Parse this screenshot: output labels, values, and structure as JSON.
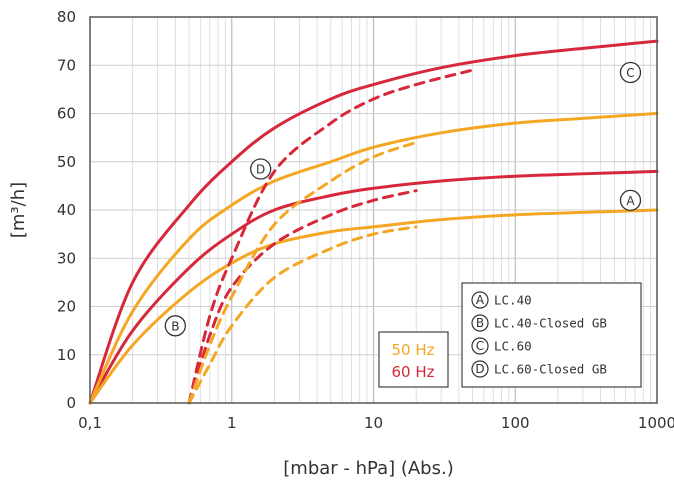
{
  "chart_data": {
    "type": "line",
    "x_scale": "log",
    "xlim": [
      0.1,
      1000
    ],
    "ylim": [
      0,
      80
    ],
    "xlabel": "[mbar - hPa] (Abs.)",
    "ylabel": "[m³/h]",
    "x_ticks": [
      "0,1",
      "1",
      "10",
      "100",
      "1000"
    ],
    "y_ticks": [
      "0",
      "10",
      "20",
      "30",
      "40",
      "50",
      "60",
      "70",
      "80"
    ],
    "grid": true,
    "colors": {
      "50 Hz": "#f5a623",
      "60 Hz": "#d6283a"
    },
    "frequency_legend": [
      {
        "label": "50 Hz",
        "color": "#f5a623"
      },
      {
        "label": "60 Hz",
        "color": "#d6283a"
      }
    ],
    "series_legend": [
      {
        "marker": "A",
        "label": "LC.40"
      },
      {
        "marker": "B",
        "label": "LC.40-Closed GB"
      },
      {
        "marker": "C",
        "label": "LC.60"
      },
      {
        "marker": "D",
        "label": "LC.60-Closed GB"
      }
    ],
    "series": [
      {
        "model": "A",
        "frequency": "60 Hz",
        "style": "solid",
        "color": "#d6283a",
        "x": [
          0.1,
          0.2,
          0.5,
          1,
          2,
          5,
          10,
          30,
          100,
          300,
          1000
        ],
        "y": [
          0,
          15,
          28,
          35,
          40,
          43,
          44.5,
          46,
          47,
          47.5,
          48
        ]
      },
      {
        "model": "A",
        "frequency": "50 Hz",
        "style": "solid",
        "color": "#f5a623",
        "x": [
          0.1,
          0.2,
          0.5,
          1,
          2,
          5,
          10,
          30,
          100,
          300,
          1000
        ],
        "y": [
          0,
          12,
          23,
          29,
          33,
          35.5,
          36.5,
          38,
          39,
          39.5,
          40
        ]
      },
      {
        "model": "C",
        "frequency": "60 Hz",
        "style": "solid",
        "color": "#d6283a",
        "x": [
          0.1,
          0.2,
          0.5,
          1,
          2,
          5,
          10,
          30,
          100,
          300,
          1000
        ],
        "y": [
          0,
          25,
          41,
          50,
          57,
          63,
          66,
          69.5,
          72,
          73.5,
          75
        ]
      },
      {
        "model": "C",
        "frequency": "50 Hz",
        "style": "solid",
        "color": "#f5a623",
        "x": [
          0.1,
          0.2,
          0.5,
          1,
          2,
          5,
          10,
          30,
          100,
          300,
          1000
        ],
        "y": [
          0,
          19,
          34,
          41,
          46,
          50,
          53,
          56,
          58,
          59,
          60
        ]
      },
      {
        "model": "B",
        "frequency": "60 Hz",
        "style": "dashed",
        "color": "#d6283a",
        "x": [
          0.5,
          0.7,
          1,
          2,
          5,
          10,
          20
        ],
        "y": [
          0,
          14,
          24,
          33,
          39,
          42,
          44
        ]
      },
      {
        "model": "B",
        "frequency": "50 Hz",
        "style": "dashed",
        "color": "#f5a623",
        "x": [
          0.5,
          0.7,
          1,
          2,
          5,
          10,
          20
        ],
        "y": [
          0,
          8,
          16,
          26,
          32,
          35,
          36.5
        ]
      },
      {
        "model": "D",
        "frequency": "60 Hz",
        "style": "dashed",
        "color": "#d6283a",
        "x": [
          0.5,
          0.7,
          1,
          2,
          5,
          10,
          20,
          50
        ],
        "y": [
          0,
          18,
          30,
          48,
          58,
          63,
          66,
          69
        ]
      },
      {
        "model": "D",
        "frequency": "50 Hz",
        "style": "dashed",
        "color": "#f5a623",
        "x": [
          0.5,
          0.7,
          1,
          2,
          5,
          10,
          20
        ],
        "y": [
          0,
          12,
          22,
          37,
          46,
          51,
          54
        ]
      }
    ],
    "markers": [
      {
        "letter": "A",
        "x": 650,
        "y": 42
      },
      {
        "letter": "B",
        "x": 0.4,
        "y": 16
      },
      {
        "letter": "C",
        "x": 650,
        "y": 68.5
      },
      {
        "letter": "D",
        "x": 1.6,
        "y": 48.5
      }
    ]
  }
}
